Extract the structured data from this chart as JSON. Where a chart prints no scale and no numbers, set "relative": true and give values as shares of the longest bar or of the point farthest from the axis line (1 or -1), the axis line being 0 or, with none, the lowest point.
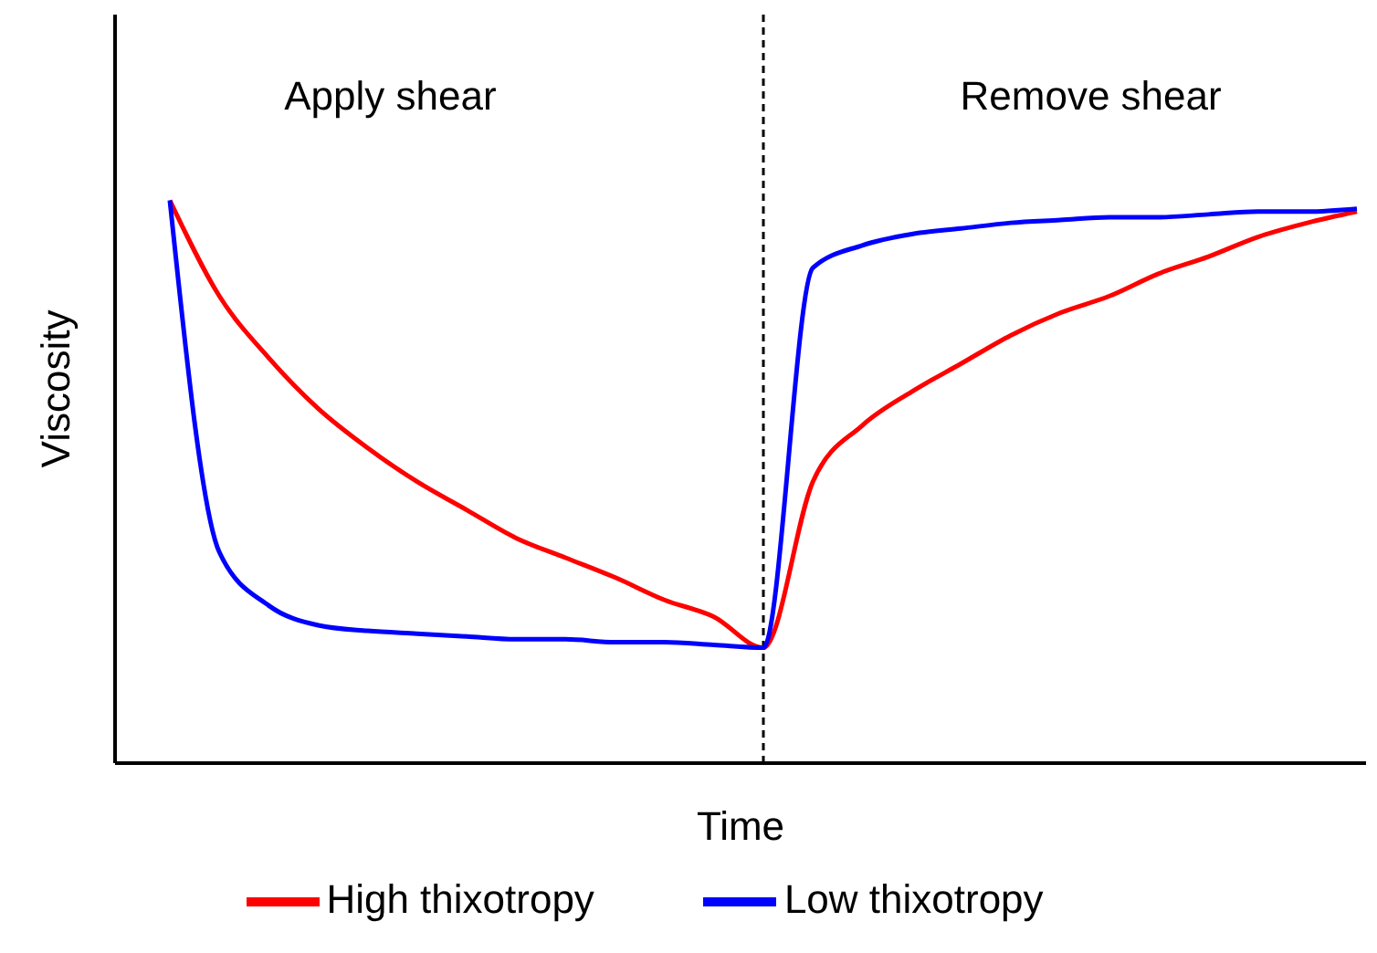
{
  "chart_data": {
    "type": "line",
    "relative": true,
    "xlabel": "Time",
    "ylabel": "Viscosity",
    "categories": [
      null,
      null,
      null,
      null,
      null,
      null,
      null,
      null,
      null,
      null,
      null,
      null,
      null,
      null,
      null,
      null,
      null,
      null,
      null,
      null,
      null,
      null,
      null,
      null,
      null
    ],
    "series": [
      {
        "name": "High thixotropy",
        "color": "#ff0000",
        "values": [
          1.0,
          0.83,
          0.72,
          0.63,
          0.56,
          0.5,
          0.45,
          0.4,
          0.365,
          0.33,
          0.29,
          0.26,
          0.205,
          0.5,
          0.6,
          0.66,
          0.71,
          0.76,
          0.8,
          0.83,
          0.87,
          0.9,
          0.935,
          0.96,
          0.98
        ]
      },
      {
        "name": "Low thixotropy",
        "color": "#0000ff",
        "values": [
          1.0,
          0.375,
          0.28,
          0.245,
          0.235,
          0.23,
          0.225,
          0.22,
          0.22,
          0.215,
          0.215,
          0.21,
          0.205,
          0.88,
          0.92,
          0.94,
          0.95,
          0.96,
          0.965,
          0.97,
          0.97,
          0.975,
          0.98,
          0.98,
          0.985
        ]
      }
    ],
    "annotations": [
      "Apply shear",
      "Remove shear"
    ],
    "legend": "bottom",
    "marker": "none",
    "line_style": "solid"
  }
}
